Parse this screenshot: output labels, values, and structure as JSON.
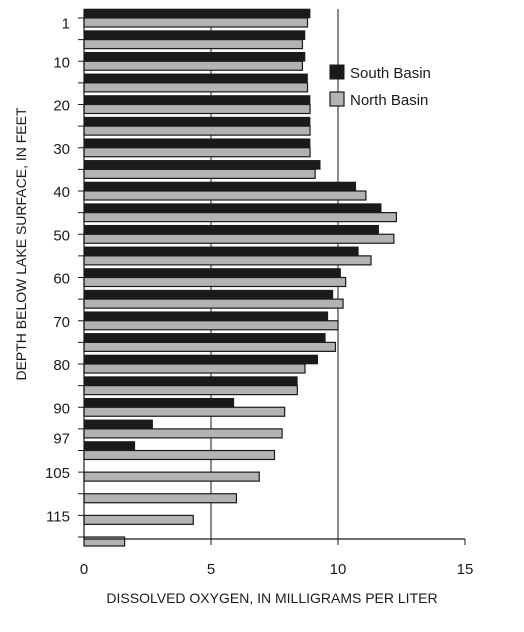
{
  "chart_data": {
    "type": "bar",
    "orientation": "horizontal",
    "title": "",
    "xlabel": "DISSOLVED OXYGEN, IN MILLIGRAMS PER LITER",
    "ylabel": "DEPTH BELOW LAKE SURFACE, IN FEET",
    "xlim": [
      0,
      15
    ],
    "xticks": [
      0,
      5,
      10,
      15
    ],
    "ylim": [
      0,
      120
    ],
    "yticks": [
      1,
      10,
      20,
      30,
      40,
      50,
      60,
      70,
      80,
      90,
      97,
      105,
      115
    ],
    "grid": "vertical lines at 5 and 10",
    "legend_position": "top-right",
    "series": [
      {
        "name": "South Basin",
        "color": "#1a1a1a",
        "points": [
          {
            "depth": 0,
            "value": 8.9
          },
          {
            "depth": 5,
            "value": 8.7
          },
          {
            "depth": 10,
            "value": 8.7
          },
          {
            "depth": 15,
            "value": 8.8
          },
          {
            "depth": 20,
            "value": 8.9
          },
          {
            "depth": 25,
            "value": 8.9
          },
          {
            "depth": 30,
            "value": 8.9
          },
          {
            "depth": 35,
            "value": 9.3
          },
          {
            "depth": 40,
            "value": 10.7
          },
          {
            "depth": 45,
            "value": 11.7
          },
          {
            "depth": 50,
            "value": 11.6
          },
          {
            "depth": 55,
            "value": 10.8
          },
          {
            "depth": 60,
            "value": 10.1
          },
          {
            "depth": 65,
            "value": 9.8
          },
          {
            "depth": 70,
            "value": 9.6
          },
          {
            "depth": 75,
            "value": 9.5
          },
          {
            "depth": 80,
            "value": 9.2
          },
          {
            "depth": 85,
            "value": 8.4
          },
          {
            "depth": 90,
            "value": 5.9
          },
          {
            "depth": 95,
            "value": 2.7
          },
          {
            "depth": 100,
            "value": 2.0
          }
        ]
      },
      {
        "name": "North Basin",
        "color": "#b3b3b3",
        "points": [
          {
            "depth": 0,
            "value": 8.8
          },
          {
            "depth": 5,
            "value": 8.6
          },
          {
            "depth": 10,
            "value": 8.6
          },
          {
            "depth": 15,
            "value": 8.8
          },
          {
            "depth": 20,
            "value": 8.9
          },
          {
            "depth": 25,
            "value": 8.9
          },
          {
            "depth": 30,
            "value": 8.9
          },
          {
            "depth": 35,
            "value": 9.1
          },
          {
            "depth": 40,
            "value": 11.1
          },
          {
            "depth": 45,
            "value": 12.3
          },
          {
            "depth": 50,
            "value": 12.2
          },
          {
            "depth": 55,
            "value": 11.3
          },
          {
            "depth": 60,
            "value": 10.3
          },
          {
            "depth": 65,
            "value": 10.2
          },
          {
            "depth": 70,
            "value": 10.0
          },
          {
            "depth": 75,
            "value": 9.9
          },
          {
            "depth": 80,
            "value": 8.7
          },
          {
            "depth": 85,
            "value": 8.4
          },
          {
            "depth": 90,
            "value": 7.9
          },
          {
            "depth": 95,
            "value": 7.8
          },
          {
            "depth": 100,
            "value": 7.5
          },
          {
            "depth": 105,
            "value": 6.9
          },
          {
            "depth": 110,
            "value": 6.0
          },
          {
            "depth": 115,
            "value": 4.3
          },
          {
            "depth": 120,
            "value": 1.6
          }
        ]
      }
    ]
  }
}
